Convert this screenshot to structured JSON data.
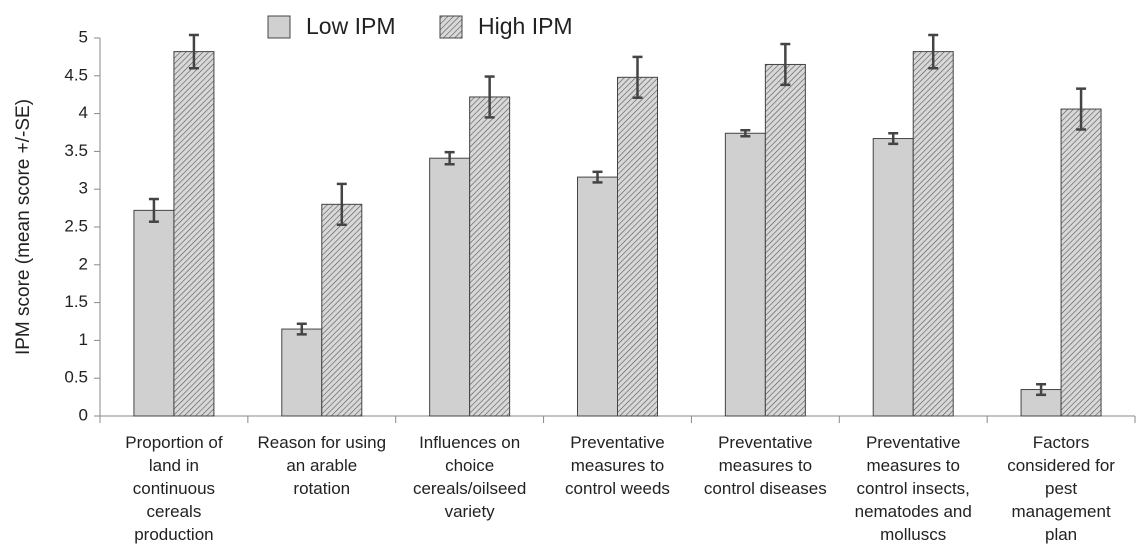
{
  "chart_data": {
    "type": "bar",
    "ylabel": "IPM score (mean score +/-SE)",
    "categories": [
      "Proportion of\nland in\ncontinuous\ncereals\nproduction",
      "Reason for using\nan arable\nrotation",
      "Influences on\nchoice\ncereals/oilseed\nvariety",
      "Preventative\nmeasures to\ncontrol weeds",
      "Preventative\nmeasures to\ncontrol diseases",
      "Preventative\nmeasures to\ncontrol insects,\nnematodes and\nmolluscs",
      "Factors\nconsidered for\npest\nmanagement\nplan"
    ],
    "series": [
      {
        "name": "Low IPM",
        "color": "#d0d0d0",
        "hatch": false,
        "values": [
          2.72,
          1.15,
          3.41,
          3.16,
          3.74,
          3.67,
          0.35
        ],
        "errors": [
          0.15,
          0.07,
          0.08,
          0.07,
          0.04,
          0.07,
          0.07
        ]
      },
      {
        "name": "High IPM",
        "color": "#c4c4c4",
        "hatch": true,
        "values": [
          4.82,
          2.8,
          4.22,
          4.48,
          4.65,
          4.82,
          4.06
        ],
        "errors": [
          0.22,
          0.27,
          0.27,
          0.27,
          0.27,
          0.22,
          0.27
        ]
      }
    ],
    "ylim": [
      0,
      5
    ],
    "yticks": [
      0,
      0.5,
      1,
      1.5,
      2,
      2.5,
      3,
      3.5,
      4,
      4.5,
      5
    ],
    "grid": false,
    "legend": "top"
  }
}
